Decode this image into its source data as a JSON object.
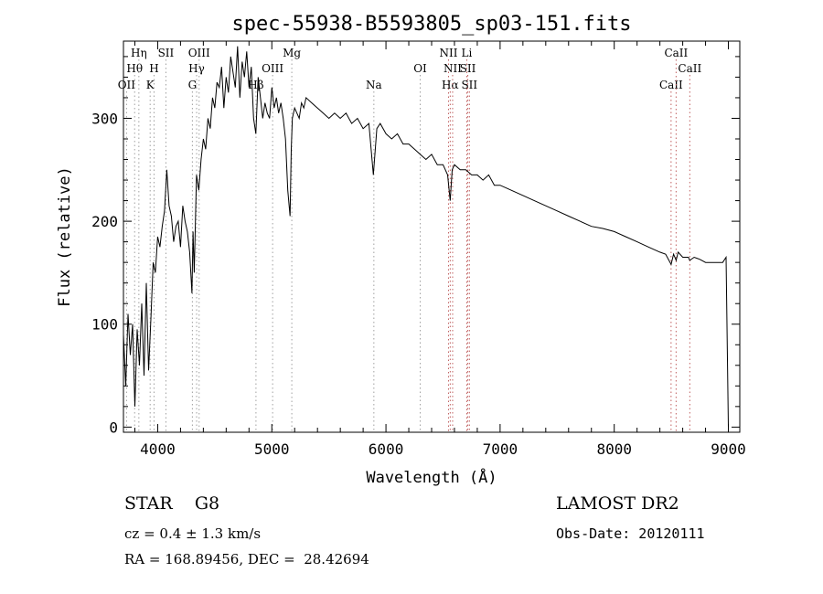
{
  "chart_data": {
    "type": "line",
    "title": "spec-55938-B5593805_sp03-151.fits",
    "xlabel": "Wavelength (Å)",
    "ylabel": "Flux (relative)",
    "xlim": [
      3700,
      9100
    ],
    "ylim": [
      -5,
      375
    ],
    "xticks": [
      "4000",
      "5000",
      "6000",
      "7000",
      "8000",
      "9000"
    ],
    "yticks": [
      "0",
      "100",
      "200",
      "300"
    ],
    "grid": false,
    "line_color": "#000000",
    "series": [
      {
        "x": [
          3700,
          3720,
          3740,
          3760,
          3780,
          3800,
          3820,
          3840,
          3860,
          3880,
          3900,
          3920,
          3940,
          3960,
          3980,
          4000,
          4020,
          4040,
          4060,
          4080,
          4100,
          4120,
          4140,
          4160,
          4180,
          4200,
          4220,
          4240,
          4260,
          4280,
          4300,
          4310,
          4320,
          4340,
          4360,
          4380,
          4400,
          4420,
          4440,
          4460,
          4480,
          4500,
          4520,
          4540,
          4560,
          4580,
          4600,
          4620,
          4640,
          4660,
          4680,
          4700,
          4720,
          4740,
          4760,
          4780,
          4800,
          4820,
          4840,
          4860,
          4880,
          4900,
          4920,
          4940,
          4960,
          4980,
          5000,
          5020,
          5040,
          5060,
          5080,
          5100,
          5120,
          5140,
          5160,
          5170,
          5180,
          5200,
          5220,
          5240,
          5260,
          5280,
          5300,
          5350,
          5400,
          5450,
          5500,
          5550,
          5600,
          5650,
          5700,
          5750,
          5800,
          5850,
          5890,
          5920,
          5950,
          6000,
          6050,
          6100,
          6150,
          6200,
          6250,
          6300,
          6350,
          6400,
          6450,
          6500,
          6540,
          6563,
          6580,
          6600,
          6650,
          6700,
          6750,
          6800,
          6850,
          6900,
          6950,
          7000,
          7100,
          7200,
          7300,
          7400,
          7500,
          7600,
          7700,
          7800,
          7900,
          8000,
          8100,
          8200,
          8300,
          8400,
          8450,
          8498,
          8520,
          8542,
          8560,
          8600,
          8650,
          8662,
          8700,
          8750,
          8800,
          8850,
          8900,
          8950,
          8980,
          9000
        ],
        "y": [
          90,
          40,
          110,
          70,
          100,
          20,
          95,
          60,
          120,
          50,
          140,
          55,
          105,
          160,
          150,
          185,
          175,
          195,
          210,
          250,
          215,
          205,
          180,
          195,
          200,
          175,
          215,
          200,
          190,
          170,
          130,
          190,
          150,
          245,
          230,
          260,
          280,
          270,
          300,
          290,
          320,
          310,
          335,
          330,
          350,
          310,
          340,
          325,
          360,
          345,
          330,
          370,
          320,
          355,
          340,
          365,
          330,
          350,
          300,
          285,
          340,
          320,
          300,
          315,
          305,
          300,
          330,
          310,
          320,
          305,
          315,
          300,
          280,
          230,
          205,
          270,
          300,
          310,
          305,
          300,
          315,
          310,
          320,
          315,
          310,
          305,
          300,
          305,
          300,
          305,
          295,
          300,
          290,
          295,
          245,
          290,
          295,
          285,
          280,
          285,
          275,
          275,
          270,
          265,
          260,
          265,
          255,
          255,
          245,
          220,
          250,
          255,
          250,
          250,
          245,
          245,
          240,
          245,
          235,
          235,
          230,
          225,
          220,
          215,
          210,
          205,
          200,
          195,
          193,
          190,
          185,
          180,
          175,
          170,
          168,
          158,
          168,
          162,
          170,
          165,
          165,
          162,
          165,
          163,
          160,
          160,
          160,
          160,
          165,
          0
        ]
      }
    ],
    "line_annotations": [
      {
        "label": "OII",
        "x": 3727,
        "row": 3,
        "color": "#a0a0a0"
      },
      {
        "label": "Hθ",
        "x": 3798,
        "row": 2,
        "color": "#a0a0a0"
      },
      {
        "label": "Hη",
        "x": 3835,
        "row": 1,
        "color": "#a0a0a0"
      },
      {
        "label": "K",
        "x": 3934,
        "row": 3,
        "color": "#a0a0a0"
      },
      {
        "label": "H",
        "x": 3968,
        "row": 2,
        "color": "#a0a0a0"
      },
      {
        "label": "SII",
        "x": 4072,
        "row": 1,
        "color": "#a0a0a0"
      },
      {
        "label": "G",
        "x": 4304,
        "row": 3,
        "color": "#a0a0a0"
      },
      {
        "label": "Hγ",
        "x": 4341,
        "row": 2,
        "color": "#a0a0a0"
      },
      {
        "label": "OIII",
        "x": 4363,
        "row": 1,
        "color": "#a0a0a0"
      },
      {
        "label": "Hβ",
        "x": 4861,
        "row": 3,
        "color": "#a0a0a0"
      },
      {
        "label": "OIII",
        "x": 5007,
        "row": 2,
        "color": "#a0a0a0"
      },
      {
        "label": "Mg",
        "x": 5175,
        "row": 1,
        "color": "#a0a0a0"
      },
      {
        "label": "Na",
        "x": 5894,
        "row": 3,
        "color": "#a0a0a0"
      },
      {
        "label": "OI",
        "x": 6300,
        "row": 2,
        "color": "#a0a0a0"
      },
      {
        "label": "NII",
        "x": 6548,
        "row": 1,
        "color": "#c06060"
      },
      {
        "label": "Hα",
        "x": 6563,
        "row": 3,
        "color": "#c06060"
      },
      {
        "label": "NII",
        "x": 6584,
        "row": 2,
        "color": "#c06060"
      },
      {
        "label": "Li",
        "x": 6708,
        "row": 1,
        "color": "#c06060"
      },
      {
        "label": "SII",
        "x": 6717,
        "row": 2,
        "color": "#c06060"
      },
      {
        "label": "SII",
        "x": 6731,
        "row": 3,
        "color": "#c06060"
      },
      {
        "label": "CaII",
        "x": 8498,
        "row": 3,
        "color": "#c06060"
      },
      {
        "label": "CaII",
        "x": 8542,
        "row": 1,
        "color": "#c06060"
      },
      {
        "label": "CaII",
        "x": 8662,
        "row": 2,
        "color": "#c06060"
      }
    ]
  },
  "info": {
    "class_text": "STAR    G8",
    "survey_text": "LAMOST DR2",
    "cz_text": "cz = 0.4 ± 1.3 km/s",
    "obsdate_text": "Obs-Date: 20120111",
    "radec_text": "RA = 168.89456, DEC =  28.42694"
  }
}
